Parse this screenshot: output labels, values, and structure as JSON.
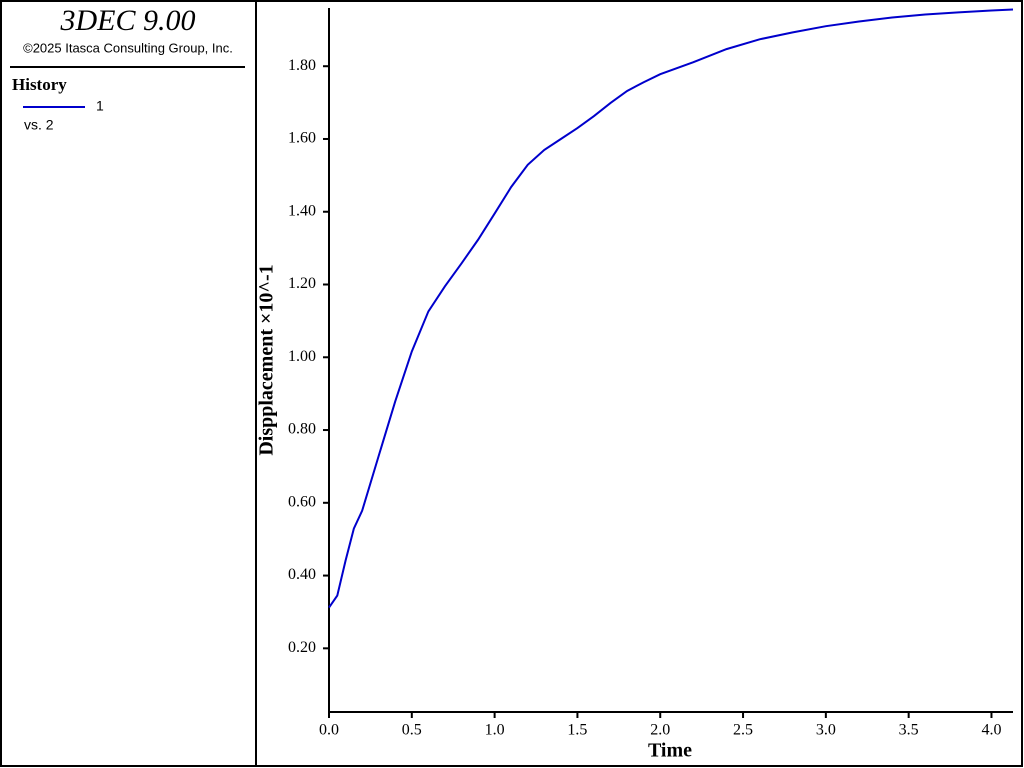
{
  "chart_data": {
    "type": "line",
    "title": "3DEC 9.00",
    "subtitle": "©2025 Itasca Consulting Group, Inc.",
    "legend_title": "History",
    "legend_note": "vs. 2",
    "xlabel": "Time",
    "ylabel": "Dispplacement ×10^-1",
    "x": [
      0,
      0.05,
      0.1,
      0.15,
      0.2,
      0.3,
      0.4,
      0.5,
      0.6,
      0.7,
      0.8,
      0.9,
      1.0,
      1.1,
      1.2,
      1.3,
      1.4,
      1.5,
      1.6,
      1.7,
      1.8,
      1.9,
      2.0,
      2.2,
      2.4,
      2.6,
      2.8,
      3.0,
      3.2,
      3.4,
      3.6,
      3.8,
      4.0,
      4.13
    ],
    "series": [
      {
        "name": "1",
        "color": "#0000cc",
        "values": [
          0.312,
          0.345,
          0.441,
          0.529,
          0.578,
          0.729,
          0.879,
          1.016,
          1.126,
          1.195,
          1.258,
          1.323,
          1.395,
          1.468,
          1.529,
          1.57,
          1.6,
          1.63,
          1.663,
          1.699,
          1.732,
          1.756,
          1.778,
          1.811,
          1.847,
          1.874,
          1.893,
          1.91,
          1.923,
          1.934,
          1.942,
          1.948,
          1.953,
          1.956
        ]
      }
    ],
    "xlim": [
      0,
      4.13
    ],
    "ylim": [
      0.025,
      1.96
    ],
    "xticks": [
      {
        "value": 0,
        "label": "0.0"
      },
      0.5,
      {
        "value": 1,
        "label": "1.0"
      },
      1.5,
      {
        "value": 2,
        "label": "2.0"
      },
      2.5,
      {
        "value": 3,
        "label": "3.0"
      },
      3.5,
      {
        "value": 4,
        "label": "4.0"
      }
    ],
    "yticks": [
      {
        "value": 0.2,
        "label": "0.20"
      },
      {
        "value": 0.4,
        "label": "0.40"
      },
      {
        "value": 0.6,
        "label": "0.60"
      },
      {
        "value": 0.8,
        "label": "0.80"
      },
      {
        "value": 1.0,
        "label": "1.00"
      },
      {
        "value": 1.2,
        "label": "1.20"
      },
      {
        "value": 1.4,
        "label": "1.40"
      },
      {
        "value": 1.6,
        "label": "1.60"
      },
      {
        "value": 1.8,
        "label": "1.80"
      }
    ]
  }
}
